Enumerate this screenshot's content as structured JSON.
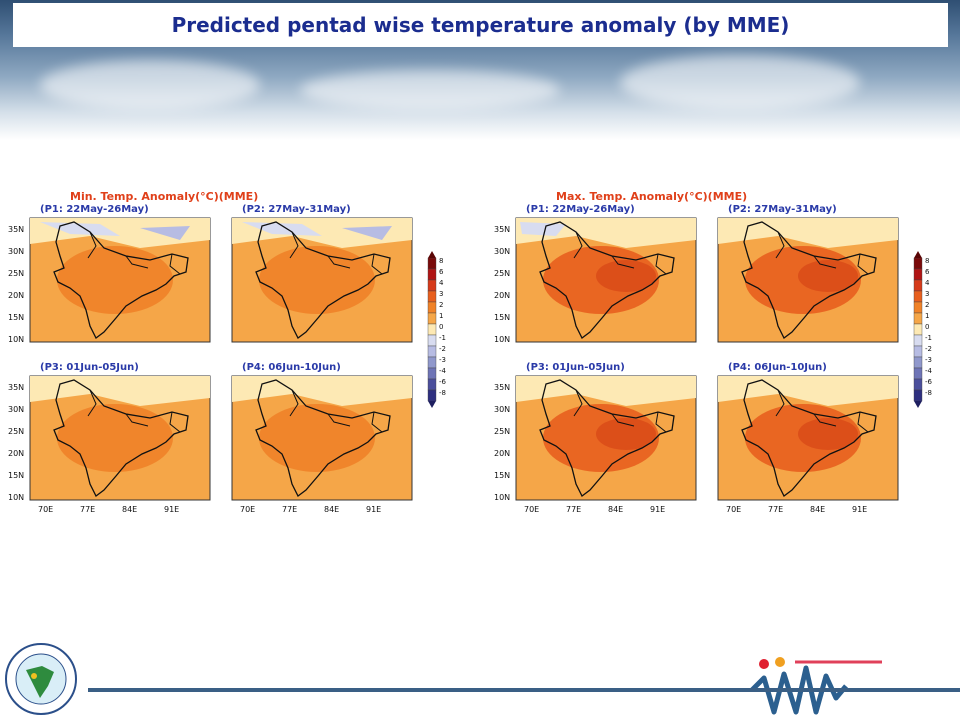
{
  "header": {
    "title": "Predicted pentad wise temperature anomaly (by MME)"
  },
  "min_temp_figure": {
    "title": "Min. Temp. Anomaly(°C)(MME)",
    "panels": [
      {
        "label": "(P1: 22May-26May)"
      },
      {
        "label": "(P2: 27May-31May)"
      },
      {
        "label": "(P3: 01Jun-05Jun)"
      },
      {
        "label": "(P4: 06Jun-10Jun)"
      }
    ]
  },
  "max_temp_figure": {
    "title": "Max. Temp. Anomaly(°C)(MME)",
    "panels": [
      {
        "label": "(P1: 22May-26May)"
      },
      {
        "label": "(P2: 27May-31May)"
      },
      {
        "label": "(P3: 01Jun-05Jun)"
      },
      {
        "label": "(P4: 06Jun-10Jun)"
      }
    ]
  },
  "lat_labels": [
    "35N",
    "30N",
    "25N",
    "20N",
    "15N",
    "10N"
  ],
  "lon_labels": [
    "70E",
    "77E",
    "84E",
    "91E"
  ],
  "colorbar": {
    "labels": [
      "8",
      "6",
      "4",
      "3",
      "2",
      "1",
      "0",
      "-1",
      "-2",
      "-3",
      "-4",
      "-6",
      "-8"
    ],
    "colors": [
      "#7a0a0a",
      "#b01414",
      "#d63a1a",
      "#e85f1e",
      "#f08228",
      "#f5a648",
      "#fde9b4",
      "#d8dcf0",
      "#b7bce3",
      "#9098cc",
      "#6e74b6",
      "#4b4f9c",
      "#2e2f80"
    ]
  },
  "map_colors": {
    "warm1": "#f5a648",
    "warm2": "#f08228",
    "warm3": "#e85f1e",
    "neutral": "#fde9b4",
    "cool1": "#d8dcf0",
    "cool2": "#b7bce3"
  }
}
